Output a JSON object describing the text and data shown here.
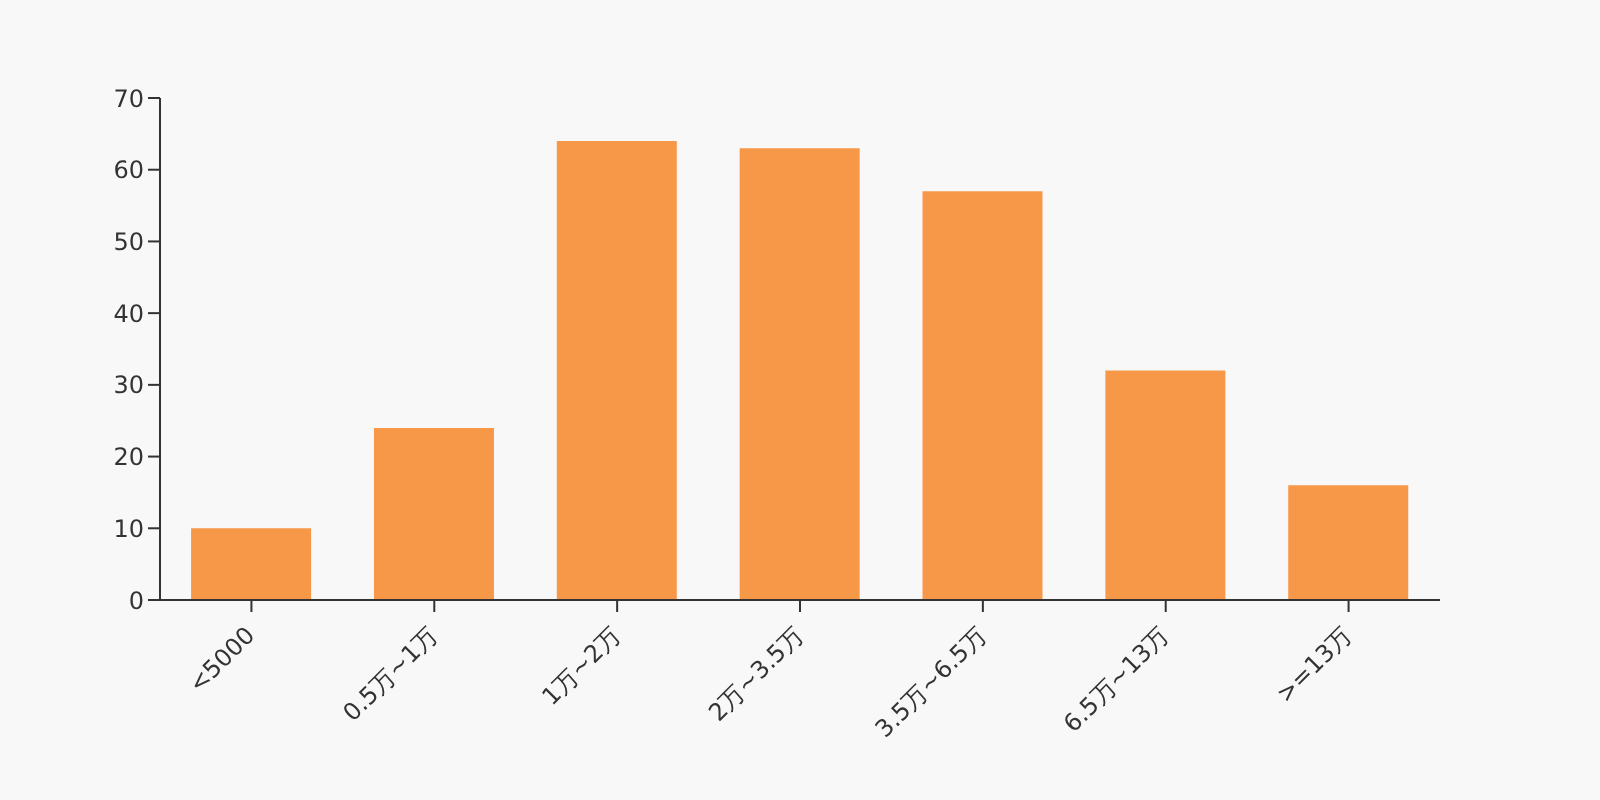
{
  "chart_data": {
    "type": "bar",
    "categories": [
      "<5000",
      "0.5万~1万",
      "1万~2万",
      "2万~3.5万",
      "3.5万~6.5万",
      "6.5万~13万",
      ">=13万"
    ],
    "values": [
      10,
      24,
      64,
      63,
      57,
      32,
      16
    ],
    "color": "#f79748",
    "ylim": [
      0,
      70
    ],
    "yticks": [
      0,
      10,
      20,
      30,
      40,
      50,
      60,
      70
    ],
    "grid": false,
    "legend": false
  }
}
